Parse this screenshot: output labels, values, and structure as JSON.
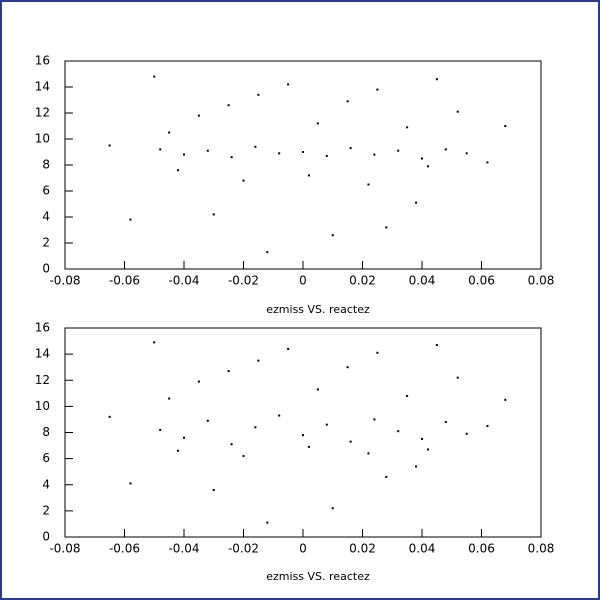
{
  "chart_data": [
    {
      "type": "scatter",
      "xlabel": "ezmiss VS. reactez",
      "color": "#000000",
      "x": [
        -0.048,
        -0.04,
        -0.032,
        -0.024,
        -0.016,
        -0.008,
        0,
        0.008,
        0.016,
        0.024,
        0.032,
        0.04,
        0.048,
        0.055,
        -0.045,
        -0.035,
        -0.025,
        -0.015,
        -0.005,
        0.005,
        0.015,
        0.025,
        0.035,
        0.045,
        0.052,
        -0.042,
        -0.02,
        0.002,
        0.022,
        0.042,
        -0.065,
        -0.058,
        0.062,
        0.068,
        -0.03,
        0.01,
        0.038,
        -0.012,
        0.028,
        -0.05
      ],
      "y": [
        9.2,
        8.8,
        9.1,
        8.6,
        9.4,
        8.9,
        9.0,
        8.7,
        9.3,
        8.8,
        9.1,
        8.5,
        9.2,
        8.9,
        10.5,
        11.8,
        12.6,
        13.4,
        14.2,
        11.2,
        12.9,
        13.8,
        10.9,
        14.6,
        12.1,
        7.6,
        6.8,
        7.2,
        6.5,
        7.9,
        9.5,
        3.8,
        8.2,
        11.0,
        4.2,
        2.6,
        5.1,
        1.3,
        3.2,
        14.8
      ],
      "xlim": [
        -0.08,
        0.08
      ],
      "ylim": [
        0,
        16
      ],
      "xticks": [
        -0.08,
        -0.06,
        -0.04,
        -0.02,
        0,
        0.02,
        0.04,
        0.06,
        0.08
      ],
      "yticks": [
        0,
        2,
        4,
        6,
        8,
        10,
        12,
        14,
        16
      ]
    },
    {
      "type": "scatter",
      "xlabel": "ezmiss VS. reactez",
      "color": "#000000",
      "x": [
        -0.048,
        -0.04,
        -0.032,
        -0.024,
        -0.016,
        -0.008,
        0,
        0.008,
        0.016,
        0.024,
        0.032,
        0.04,
        0.048,
        0.055,
        -0.045,
        -0.035,
        -0.025,
        -0.015,
        -0.005,
        0.005,
        0.015,
        0.025,
        0.035,
        0.045,
        0.052,
        -0.042,
        -0.02,
        0.002,
        0.022,
        0.042,
        -0.065,
        -0.058,
        0.062,
        0.068,
        -0.03,
        0.01,
        0.038,
        -0.012,
        0.028,
        -0.05
      ],
      "y": [
        8.2,
        7.6,
        8.9,
        7.1,
        8.4,
        9.3,
        7.8,
        8.6,
        7.3,
        9.0,
        8.1,
        7.5,
        8.8,
        7.9,
        10.6,
        11.9,
        12.7,
        13.5,
        14.4,
        11.3,
        13.0,
        14.1,
        10.8,
        14.7,
        12.2,
        6.6,
        6.2,
        6.9,
        6.4,
        6.7,
        9.2,
        4.1,
        8.5,
        10.5,
        3.6,
        2.2,
        5.4,
        1.1,
        4.6,
        14.9
      ],
      "xlim": [
        -0.08,
        0.08
      ],
      "ylim": [
        0,
        16
      ],
      "xticks": [
        -0.08,
        -0.06,
        -0.04,
        -0.02,
        0,
        0.02,
        0.04,
        0.06,
        0.08
      ],
      "yticks": [
        0,
        2,
        4,
        6,
        8,
        10,
        12,
        14,
        16
      ]
    }
  ]
}
